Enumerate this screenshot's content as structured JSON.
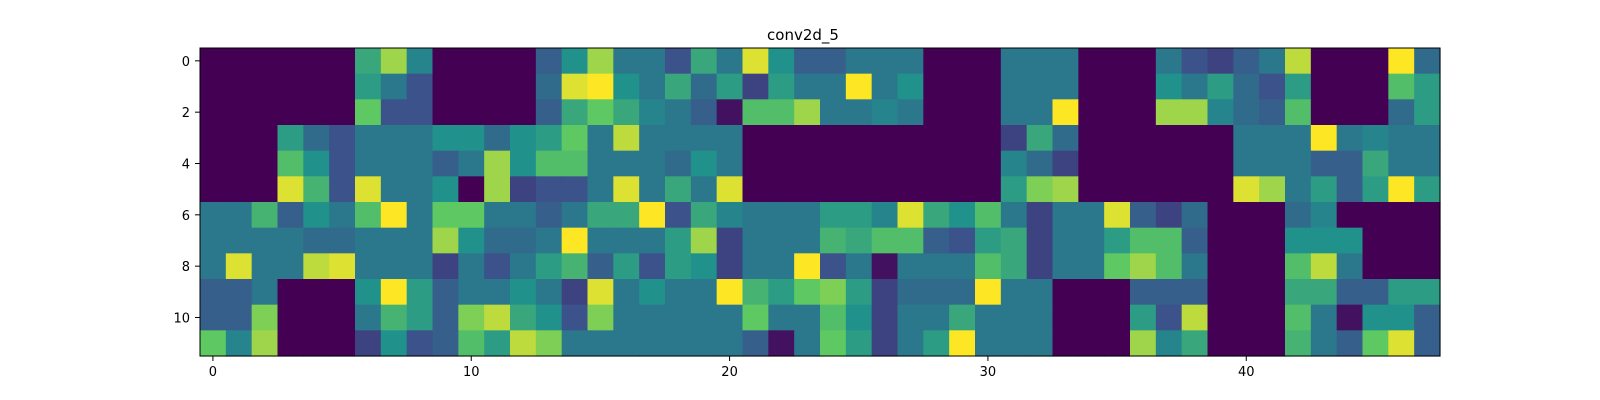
{
  "chart_data": {
    "type": "heatmap",
    "title": "conv2d_5",
    "xlabel": "",
    "ylabel": "",
    "colormap": "viridis",
    "colormap_stops": [
      "#440154",
      "#3b528b",
      "#21918c",
      "#5ec962",
      "#fde725"
    ],
    "rows": 12,
    "cols": 48,
    "value_range": [
      0,
      1
    ],
    "x_ticks": [
      0,
      10,
      20,
      30,
      40
    ],
    "x_tick_labels": [
      "0",
      "10",
      "20",
      "30",
      "40"
    ],
    "y_ticks": [
      0,
      2,
      4,
      6,
      8,
      10
    ],
    "y_tick_labels": [
      "0",
      "2",
      "4",
      "6",
      "8",
      "10"
    ],
    "values": [
      [
        0.0,
        0.0,
        0.0,
        0.0,
        0.0,
        0.0,
        0.6,
        0.85,
        0.45,
        0.0,
        0.0,
        0.0,
        0.0,
        0.3,
        0.5,
        0.85,
        0.4,
        0.4,
        0.25,
        0.6,
        0.4,
        0.95,
        0.5,
        0.3,
        0.3,
        0.4,
        0.4,
        0.4,
        0.0,
        0.0,
        0.0,
        0.4,
        0.4,
        0.4,
        0.0,
        0.0,
        0.0,
        0.4,
        0.25,
        0.2,
        0.3,
        0.4,
        0.9,
        0.0,
        0.0,
        0.0,
        1.0,
        0.35
      ],
      [
        0.0,
        0.0,
        0.0,
        0.0,
        0.0,
        0.0,
        0.55,
        0.4,
        0.25,
        0.0,
        0.0,
        0.0,
        0.0,
        0.35,
        0.95,
        1.0,
        0.5,
        0.4,
        0.6,
        0.35,
        0.55,
        0.2,
        0.55,
        0.4,
        0.4,
        1.0,
        0.4,
        0.5,
        0.0,
        0.0,
        0.0,
        0.4,
        0.4,
        0.4,
        0.0,
        0.0,
        0.0,
        0.5,
        0.4,
        0.55,
        0.35,
        0.25,
        0.55,
        0.0,
        0.0,
        0.0,
        0.7,
        0.55
      ],
      [
        0.0,
        0.0,
        0.0,
        0.0,
        0.0,
        0.0,
        0.75,
        0.25,
        0.25,
        0.0,
        0.0,
        0.0,
        0.0,
        0.3,
        0.6,
        0.75,
        0.6,
        0.45,
        0.4,
        0.3,
        0.05,
        0.7,
        0.7,
        0.85,
        0.4,
        0.4,
        0.45,
        0.4,
        0.0,
        0.0,
        0.0,
        0.4,
        0.4,
        1.0,
        0.0,
        0.0,
        0.0,
        0.85,
        0.85,
        0.45,
        0.35,
        0.3,
        0.7,
        0.0,
        0.0,
        0.0,
        0.35,
        0.55
      ],
      [
        0.0,
        0.0,
        0.0,
        0.55,
        0.35,
        0.25,
        0.4,
        0.4,
        0.4,
        0.5,
        0.5,
        0.35,
        0.5,
        0.55,
        0.75,
        0.4,
        0.9,
        0.4,
        0.4,
        0.4,
        0.4,
        0.0,
        0.0,
        0.0,
        0.0,
        0.0,
        0.0,
        0.0,
        0.0,
        0.0,
        0.0,
        0.2,
        0.6,
        0.35,
        0.0,
        0.0,
        0.0,
        0.0,
        0.0,
        0.0,
        0.4,
        0.4,
        0.4,
        1.0,
        0.4,
        0.45,
        0.4,
        0.4
      ],
      [
        0.0,
        0.0,
        0.0,
        0.7,
        0.5,
        0.25,
        0.4,
        0.4,
        0.4,
        0.3,
        0.4,
        0.85,
        0.5,
        0.7,
        0.7,
        0.4,
        0.4,
        0.4,
        0.35,
        0.5,
        0.4,
        0.0,
        0.0,
        0.0,
        0.0,
        0.0,
        0.0,
        0.0,
        0.0,
        0.0,
        0.0,
        0.45,
        0.35,
        0.2,
        0.0,
        0.0,
        0.0,
        0.0,
        0.0,
        0.0,
        0.4,
        0.4,
        0.4,
        0.3,
        0.3,
        0.6,
        0.4,
        0.4
      ],
      [
        0.0,
        0.0,
        0.0,
        0.95,
        0.65,
        0.25,
        0.95,
        0.4,
        0.4,
        0.5,
        0.0,
        0.85,
        0.2,
        0.25,
        0.25,
        0.4,
        0.95,
        0.4,
        0.6,
        0.4,
        0.95,
        0.0,
        0.0,
        0.0,
        0.0,
        0.0,
        0.0,
        0.0,
        0.0,
        0.0,
        0.0,
        0.55,
        0.8,
        0.85,
        0.0,
        0.0,
        0.0,
        0.0,
        0.0,
        0.0,
        0.95,
        0.85,
        0.4,
        0.55,
        0.3,
        0.55,
        1.0,
        0.55
      ],
      [
        0.4,
        0.4,
        0.65,
        0.3,
        0.5,
        0.4,
        0.7,
        1.0,
        0.4,
        0.75,
        0.75,
        0.4,
        0.4,
        0.3,
        0.4,
        0.6,
        0.6,
        1.0,
        0.25,
        0.6,
        0.45,
        0.4,
        0.4,
        0.4,
        0.55,
        0.55,
        0.45,
        0.95,
        0.6,
        0.5,
        0.7,
        0.4,
        0.2,
        0.4,
        0.4,
        0.95,
        0.3,
        0.2,
        0.35,
        0.0,
        0.0,
        0.0,
        0.35,
        0.45,
        0.0,
        0.0,
        0.0,
        0.0
      ],
      [
        0.4,
        0.4,
        0.4,
        0.4,
        0.35,
        0.35,
        0.4,
        0.4,
        0.4,
        0.85,
        0.5,
        0.35,
        0.35,
        0.4,
        1.0,
        0.4,
        0.4,
        0.4,
        0.55,
        0.85,
        0.2,
        0.4,
        0.4,
        0.4,
        0.65,
        0.6,
        0.7,
        0.7,
        0.3,
        0.25,
        0.55,
        0.6,
        0.2,
        0.4,
        0.4,
        0.55,
        0.7,
        0.7,
        0.3,
        0.0,
        0.0,
        0.0,
        0.5,
        0.5,
        0.5,
        0.0,
        0.0,
        0.0
      ],
      [
        0.4,
        0.95,
        0.4,
        0.4,
        0.9,
        0.95,
        0.4,
        0.4,
        0.4,
        0.2,
        0.4,
        0.25,
        0.4,
        0.55,
        0.65,
        0.3,
        0.55,
        0.25,
        0.55,
        0.5,
        0.2,
        0.4,
        0.4,
        1.0,
        0.25,
        0.4,
        0.05,
        0.4,
        0.4,
        0.4,
        0.7,
        0.6,
        0.2,
        0.4,
        0.4,
        0.75,
        0.85,
        0.7,
        0.4,
        0.0,
        0.0,
        0.0,
        0.7,
        0.9,
        0.4,
        0.0,
        0.0,
        0.0
      ],
      [
        0.3,
        0.3,
        0.4,
        0.0,
        0.0,
        0.0,
        0.5,
        1.0,
        0.55,
        0.3,
        0.4,
        0.4,
        0.5,
        0.4,
        0.2,
        0.95,
        0.4,
        0.5,
        0.4,
        0.4,
        1.0,
        0.65,
        0.55,
        0.75,
        0.8,
        0.55,
        0.2,
        0.35,
        0.35,
        0.35,
        1.0,
        0.4,
        0.4,
        0.0,
        0.0,
        0.0,
        0.3,
        0.3,
        0.3,
        0.0,
        0.0,
        0.0,
        0.6,
        0.6,
        0.3,
        0.3,
        0.55,
        0.55
      ],
      [
        0.3,
        0.3,
        0.8,
        0.0,
        0.0,
        0.0,
        0.4,
        0.65,
        0.55,
        0.3,
        0.8,
        0.9,
        0.6,
        0.5,
        0.25,
        0.8,
        0.4,
        0.4,
        0.4,
        0.4,
        0.4,
        0.75,
        0.4,
        0.4,
        0.7,
        0.5,
        0.2,
        0.4,
        0.4,
        0.6,
        0.4,
        0.4,
        0.4,
        0.0,
        0.0,
        0.0,
        0.55,
        0.25,
        0.9,
        0.0,
        0.0,
        0.0,
        0.7,
        0.4,
        0.05,
        0.5,
        0.5,
        0.3
      ],
      [
        0.75,
        0.45,
        0.85,
        0.0,
        0.0,
        0.0,
        0.2,
        0.5,
        0.25,
        0.3,
        0.7,
        0.55,
        0.9,
        0.8,
        0.4,
        0.4,
        0.4,
        0.4,
        0.4,
        0.4,
        0.4,
        0.3,
        0.05,
        0.4,
        0.75,
        0.55,
        0.2,
        0.4,
        0.55,
        1.0,
        0.4,
        0.4,
        0.4,
        0.0,
        0.0,
        0.0,
        0.85,
        0.45,
        0.6,
        0.0,
        0.0,
        0.0,
        0.65,
        0.4,
        0.3,
        0.75,
        0.95,
        0.3
      ]
    ]
  }
}
